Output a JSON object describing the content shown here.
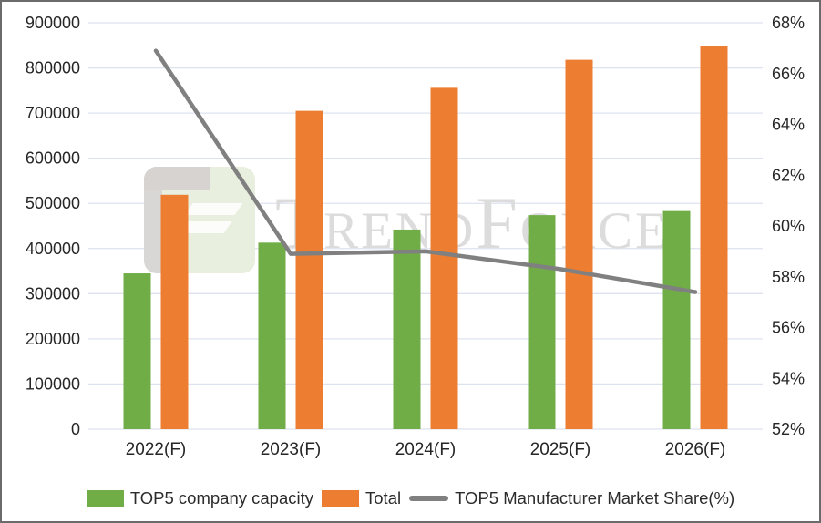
{
  "chart_data": {
    "type": "combo",
    "title": "",
    "categories": [
      "2022(F)",
      "2023(F)",
      "2024(F)",
      "2025(F)",
      "2026(F)"
    ],
    "series": [
      {
        "name": "TOP5 company capacity",
        "type": "bar",
        "axis": "left",
        "color": "#70AD47",
        "values": [
          345000,
          413000,
          442000,
          474000,
          483000
        ]
      },
      {
        "name": "Total",
        "type": "bar",
        "axis": "left",
        "color": "#ED7D31",
        "values": [
          519000,
          705000,
          756000,
          818000,
          848000
        ]
      },
      {
        "name": "TOP5 Manufacturer Market Share(%)",
        "type": "line",
        "axis": "right",
        "color": "#808080",
        "values": [
          66.9,
          58.9,
          59.0,
          58.3,
          57.4
        ]
      }
    ],
    "left_axis": {
      "min": 0,
      "max": 900000,
      "step": 100000,
      "tick_labels": [
        "0",
        "100000",
        "200000",
        "300000",
        "400000",
        "500000",
        "600000",
        "700000",
        "800000",
        "900000"
      ]
    },
    "right_axis": {
      "min": 52,
      "max": 68,
      "step": 2,
      "tick_labels": [
        "52%",
        "54%",
        "56%",
        "58%",
        "60%",
        "62%",
        "64%",
        "66%",
        "68%"
      ]
    },
    "grid": true,
    "legend_position": "bottom",
    "xlabel": "",
    "ylabel": ""
  },
  "watermark": {
    "text": "TrendForce"
  },
  "colors": {
    "green_bar": "#70AD47",
    "orange_bar": "#ED7D31",
    "line_gray": "#808080",
    "gridline": "#DDE3EE",
    "axis_text": "#262626",
    "frame_border": "#6B6B6B",
    "watermark_text": "#DCDCDC",
    "watermark_tile_green": "#E9EFDE",
    "watermark_tile_gray": "#D6D3D1",
    "background": "#FFFFFF"
  }
}
